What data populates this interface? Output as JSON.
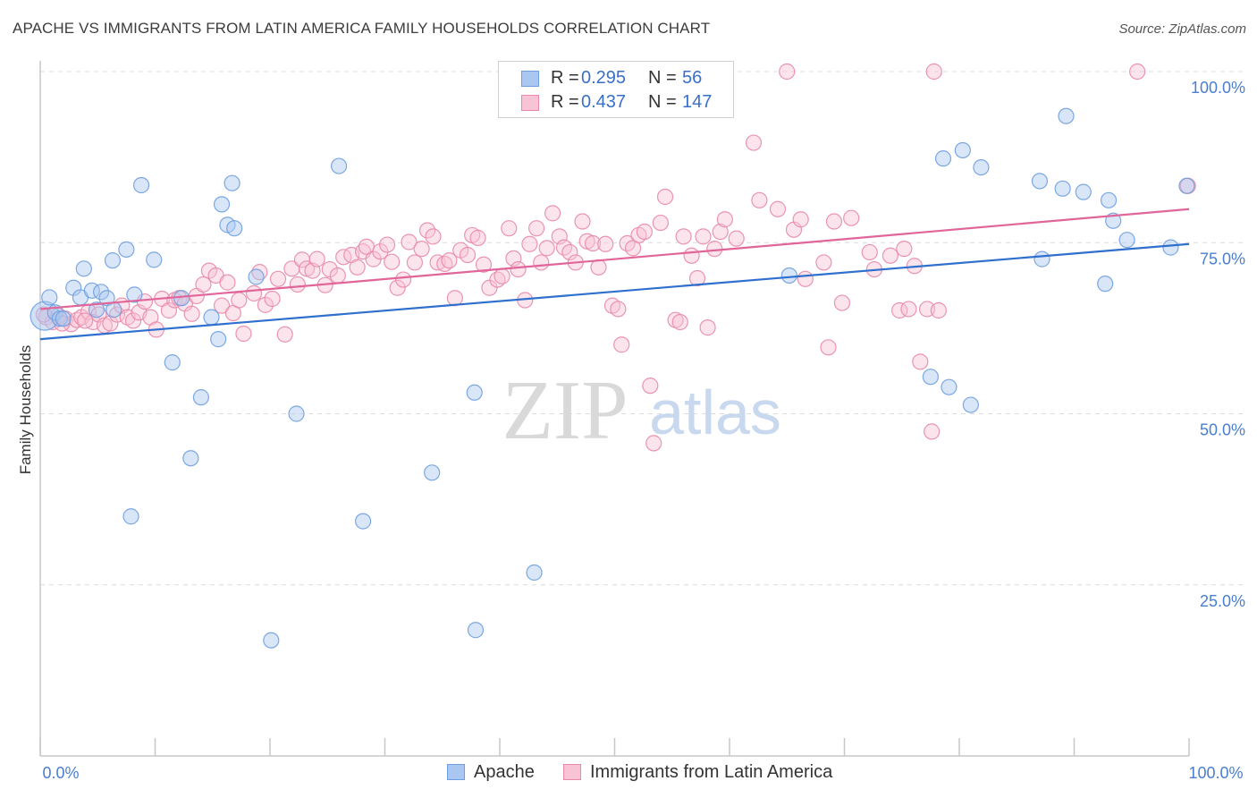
{
  "header": {
    "title": "APACHE VS IMMIGRANTS FROM LATIN AMERICA FAMILY HOUSEHOLDS CORRELATION CHART",
    "source": "Source: ZipAtlas.com"
  },
  "watermark": {
    "zip": "ZIP",
    "atlas": "atlas"
  },
  "legend": {
    "rows": [
      {
        "r_label": "R =",
        "r_value": "0.295",
        "n_label": "N =",
        "n_value": "56",
        "color": "#a9c7f0",
        "border": "#6f9ee0"
      },
      {
        "r_label": "R =",
        "r_value": "0.437",
        "n_label": "N =",
        "n_value": "147",
        "color": "#f8c3d4",
        "border": "#e889a9"
      }
    ]
  },
  "bottom_legend": {
    "apache": "Apache",
    "latin": "Immigrants from Latin America"
  },
  "colors": {
    "apache_fill": "#a9c7f0",
    "apache_stroke": "#6f9ee0",
    "apache_line": "#2f6fcd",
    "latin_fill": "#f8c3d4",
    "latin_stroke": "#e889a9",
    "latin_line": "#e0669a"
  },
  "chart_data": {
    "type": "scatter",
    "title": "APACHE VS IMMIGRANTS FROM LATIN AMERICA FAMILY HOUSEHOLDS CORRELATION CHART",
    "xlabel": "",
    "ylabel": "Family Households",
    "xlim": [
      0,
      100
    ],
    "ylim": [
      0,
      100
    ],
    "x_tick_labels": [
      "0.0%",
      "100.0%"
    ],
    "y_ticks": [
      25,
      50,
      75,
      100
    ],
    "y_tick_labels": [
      "25.0%",
      "50.0%",
      "75.0%",
      "100.0%"
    ],
    "grid": "horizontal dashed",
    "series": [
      {
        "name": "Apache",
        "r": 0.295,
        "n": 56,
        "trend": [
          [
            0,
            60.9
          ],
          [
            100,
            74.8
          ]
        ],
        "points": [
          [
            0.4,
            64.3
          ],
          [
            0.8,
            67.0
          ],
          [
            1.3,
            64.8
          ],
          [
            1.7,
            63.9
          ],
          [
            2.0,
            63.9
          ],
          [
            2.9,
            68.4
          ],
          [
            3.5,
            67.0
          ],
          [
            3.8,
            71.2
          ],
          [
            4.5,
            68.0
          ],
          [
            4.9,
            65.2
          ],
          [
            5.3,
            67.8
          ],
          [
            5.8,
            66.9
          ],
          [
            6.4,
            65.2
          ],
          [
            6.3,
            72.4
          ],
          [
            7.5,
            74.0
          ],
          [
            7.9,
            35.0
          ],
          [
            8.2,
            67.4
          ],
          [
            8.8,
            83.4
          ],
          [
            9.9,
            72.5
          ],
          [
            11.5,
            57.5
          ],
          [
            12.3,
            66.9
          ],
          [
            13.1,
            43.5
          ],
          [
            14.0,
            52.4
          ],
          [
            14.9,
            64.1
          ],
          [
            15.5,
            60.9
          ],
          [
            15.8,
            80.6
          ],
          [
            16.3,
            77.6
          ],
          [
            16.7,
            83.7
          ],
          [
            16.9,
            77.1
          ],
          [
            18.8,
            70.0
          ],
          [
            20.1,
            16.9
          ],
          [
            22.3,
            50.0
          ],
          [
            26.0,
            86.2
          ],
          [
            28.1,
            34.3
          ],
          [
            34.1,
            41.4
          ],
          [
            37.8,
            53.1
          ],
          [
            37.9,
            18.4
          ],
          [
            43.0,
            26.8
          ],
          [
            65.2,
            70.2
          ],
          [
            77.5,
            55.4
          ],
          [
            78.6,
            87.3
          ],
          [
            79.1,
            53.9
          ],
          [
            80.3,
            88.5
          ],
          [
            81.0,
            51.3
          ],
          [
            81.9,
            86.0
          ],
          [
            87.0,
            84.0
          ],
          [
            87.2,
            72.6
          ],
          [
            89.0,
            82.9
          ],
          [
            89.3,
            93.5
          ],
          [
            90.8,
            82.4
          ],
          [
            92.7,
            69.0
          ],
          [
            93.0,
            81.2
          ],
          [
            93.4,
            78.2
          ],
          [
            94.6,
            75.4
          ],
          [
            98.4,
            74.3
          ],
          [
            99.8,
            83.3
          ]
        ]
      },
      {
        "name": "Immigrants from Latin America",
        "r": 0.437,
        "n": 147,
        "trend": [
          [
            0,
            65.3
          ],
          [
            100,
            79.9
          ]
        ],
        "points": [
          [
            0.5,
            64.1
          ],
          [
            1.1,
            63.4
          ],
          [
            1.6,
            64.3
          ],
          [
            2.2,
            63.9
          ],
          [
            2.7,
            63.1
          ],
          [
            3.2,
            63.7
          ],
          [
            3.6,
            64.1
          ],
          [
            4.2,
            64.9
          ],
          [
            4.6,
            63.4
          ],
          [
            5.1,
            64.5
          ],
          [
            5.6,
            62.9
          ],
          [
            6.1,
            63.2
          ],
          [
            6.7,
            64.5
          ],
          [
            7.1,
            65.8
          ],
          [
            7.6,
            64.1
          ],
          [
            8.1,
            63.6
          ],
          [
            8.6,
            64.8
          ],
          [
            9.1,
            66.4
          ],
          [
            9.6,
            64.1
          ],
          [
            10.1,
            62.3
          ],
          [
            10.6,
            66.8
          ],
          [
            11.2,
            65.1
          ],
          [
            11.7,
            66.6
          ],
          [
            12.1,
            66.9
          ],
          [
            12.6,
            66.1
          ],
          [
            13.2,
            64.6
          ],
          [
            13.6,
            67.2
          ],
          [
            14.2,
            68.9
          ],
          [
            14.7,
            70.9
          ],
          [
            15.3,
            70.2
          ],
          [
            15.8,
            65.8
          ],
          [
            16.3,
            69.2
          ],
          [
            16.8,
            64.7
          ],
          [
            17.3,
            66.6
          ],
          [
            17.7,
            61.7
          ],
          [
            18.6,
            67.6
          ],
          [
            19.1,
            70.7
          ],
          [
            19.6,
            65.9
          ],
          [
            20.2,
            66.8
          ],
          [
            20.7,
            69.7
          ],
          [
            21.3,
            61.6
          ],
          [
            21.9,
            71.2
          ],
          [
            22.4,
            68.9
          ],
          [
            22.8,
            72.5
          ],
          [
            23.2,
            71.2
          ],
          [
            23.7,
            70.9
          ],
          [
            24.1,
            72.6
          ],
          [
            24.8,
            68.8
          ],
          [
            25.2,
            71.1
          ],
          [
            25.9,
            70.2
          ],
          [
            26.4,
            72.9
          ],
          [
            27.1,
            73.2
          ],
          [
            27.6,
            71.4
          ],
          [
            28.1,
            73.7
          ],
          [
            28.4,
            74.4
          ],
          [
            29.0,
            72.6
          ],
          [
            29.6,
            73.7
          ],
          [
            30.2,
            74.7
          ],
          [
            30.6,
            72.2
          ],
          [
            31.1,
            68.4
          ],
          [
            31.6,
            69.6
          ],
          [
            32.1,
            75.1
          ],
          [
            32.6,
            72.1
          ],
          [
            33.2,
            74.1
          ],
          [
            33.7,
            76.8
          ],
          [
            34.2,
            75.9
          ],
          [
            34.6,
            72.1
          ],
          [
            35.2,
            71.9
          ],
          [
            35.6,
            72.4
          ],
          [
            36.1,
            66.9
          ],
          [
            36.6,
            73.9
          ],
          [
            37.2,
            73.2
          ],
          [
            37.6,
            76.1
          ],
          [
            38.1,
            75.7
          ],
          [
            38.6,
            71.8
          ],
          [
            39.1,
            68.4
          ],
          [
            39.8,
            69.6
          ],
          [
            40.2,
            70.1
          ],
          [
            40.8,
            77.1
          ],
          [
            41.2,
            72.7
          ],
          [
            41.6,
            71.1
          ],
          [
            42.2,
            66.6
          ],
          [
            42.6,
            74.8
          ],
          [
            43.2,
            77.1
          ],
          [
            43.6,
            72.1
          ],
          [
            44.1,
            74.2
          ],
          [
            44.6,
            79.3
          ],
          [
            45.2,
            75.9
          ],
          [
            45.6,
            74.3
          ],
          [
            46.1,
            73.6
          ],
          [
            46.6,
            72.1
          ],
          [
            47.2,
            78.1
          ],
          [
            47.6,
            75.2
          ],
          [
            48.1,
            74.9
          ],
          [
            48.6,
            71.4
          ],
          [
            49.2,
            74.8
          ],
          [
            49.8,
            65.8
          ],
          [
            50.3,
            65.3
          ],
          [
            50.6,
            60.1
          ],
          [
            51.1,
            74.9
          ],
          [
            51.6,
            74.2
          ],
          [
            52.1,
            76.1
          ],
          [
            52.6,
            76.6
          ],
          [
            53.1,
            54.1
          ],
          [
            53.4,
            45.7
          ],
          [
            54.0,
            77.9
          ],
          [
            54.4,
            81.7
          ],
          [
            55.3,
            63.7
          ],
          [
            55.7,
            63.4
          ],
          [
            56.0,
            75.9
          ],
          [
            56.7,
            73.1
          ],
          [
            57.2,
            69.8
          ],
          [
            57.7,
            75.9
          ],
          [
            58.1,
            62.6
          ],
          [
            58.7,
            74.1
          ],
          [
            59.2,
            76.6
          ],
          [
            59.6,
            78.4
          ],
          [
            60.6,
            75.6
          ],
          [
            62.6,
            81.2
          ],
          [
            62.1,
            89.6
          ],
          [
            64.2,
            79.9
          ],
          [
            65.0,
            100.0
          ],
          [
            65.6,
            76.9
          ],
          [
            66.2,
            78.4
          ],
          [
            66.6,
            69.7
          ],
          [
            68.2,
            72.1
          ],
          [
            68.6,
            59.7
          ],
          [
            69.1,
            78.1
          ],
          [
            70.6,
            78.6
          ],
          [
            69.8,
            66.2
          ],
          [
            72.2,
            73.6
          ],
          [
            72.6,
            71.1
          ],
          [
            74.0,
            73.1
          ],
          [
            74.8,
            65.1
          ],
          [
            75.2,
            74.1
          ],
          [
            75.6,
            65.3
          ],
          [
            76.1,
            71.6
          ],
          [
            76.6,
            57.6
          ],
          [
            77.2,
            65.3
          ],
          [
            77.8,
            100.0
          ],
          [
            77.6,
            47.4
          ],
          [
            78.2,
            65.1
          ],
          [
            95.5,
            100.0
          ],
          [
            99.9,
            83.3
          ],
          [
            0.3,
            64.5
          ],
          [
            1.9,
            63.2
          ],
          [
            3.9,
            63.6
          ]
        ]
      }
    ]
  }
}
